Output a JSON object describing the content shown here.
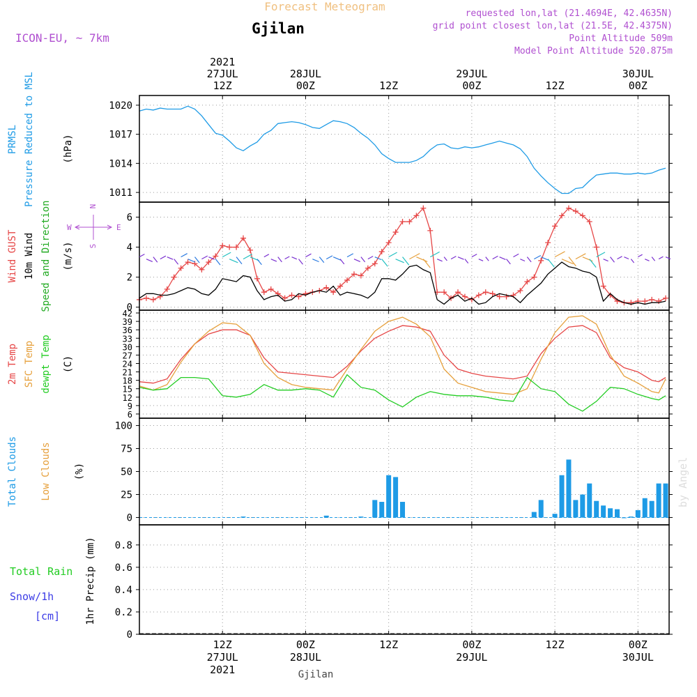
{
  "header": {
    "model": "ICON-EU, ~ 7km",
    "title": "Forecast Meteogram",
    "location": "Gjilan",
    "requested": "requested lon,lat (21.4694E, 42.4635N)",
    "grid": "grid point closest lon,lat (21.5E, 42.4375N)",
    "point_alt": "Point Altitude 509m",
    "model_alt": "Model Point Altitude 520.875m",
    "credit": "by Angel",
    "footer_location": "Gjilan"
  },
  "colors": {
    "pressure": "#1e9be6",
    "gust": "#e64646",
    "wind": "#000000",
    "wind_dir": "#22aa22",
    "t2m": "#e64646",
    "sfc": "#e6a03c",
    "dewpt": "#22cc22",
    "total_clouds": "#1e9be6",
    "low_clouds": "#e6a03c",
    "rain": "#22cc22",
    "snow": "#3c3ce6",
    "header_purple": "#b050d0",
    "title_orange": "#f0c080"
  },
  "time_axis": {
    "top": [
      {
        "t": 12,
        "lines": [
          "2021",
          "27JUL",
          "12Z"
        ]
      },
      {
        "t": 24,
        "lines": [
          "28JUL",
          "00Z"
        ]
      },
      {
        "t": 36,
        "lines": [
          "12Z"
        ]
      },
      {
        "t": 48,
        "lines": [
          "29JUL",
          "00Z"
        ]
      },
      {
        "t": 60,
        "lines": [
          "12Z"
        ]
      },
      {
        "t": 72,
        "lines": [
          "30JUL",
          "00Z"
        ]
      }
    ],
    "bottom": [
      {
        "t": 12,
        "lines": [
          "12Z",
          "27JUL",
          "2021"
        ]
      },
      {
        "t": 24,
        "lines": [
          "00Z",
          "28JUL"
        ]
      },
      {
        "t": 36,
        "lines": [
          "12Z"
        ]
      },
      {
        "t": 48,
        "lines": [
          "00Z",
          "29JUL"
        ]
      },
      {
        "t": 60,
        "lines": [
          "12Z"
        ]
      },
      {
        "t": 72,
        "lines": [
          "00Z",
          "30JUL"
        ]
      }
    ]
  },
  "chart_data": [
    {
      "type": "line",
      "panel": "pressure",
      "label_lines": [
        "PRMSL",
        "Pressure Reduced to MSL"
      ],
      "unit": "(hPa)",
      "yticks": [
        1011,
        1014,
        1017,
        1020
      ],
      "ylim": [
        1010,
        1021
      ],
      "series": [
        {
          "name": "PRMSL",
          "x": [
            0,
            1,
            2,
            3,
            4,
            5,
            6,
            7,
            8,
            9,
            10,
            11,
            12,
            13,
            14,
            15,
            16,
            17,
            18,
            19,
            20,
            21,
            22,
            23,
            24,
            25,
            26,
            27,
            28,
            29,
            30,
            31,
            32,
            33,
            34,
            35,
            36,
            37,
            38,
            39,
            40,
            41,
            42,
            43,
            44,
            45,
            46,
            47,
            48,
            49,
            50,
            51,
            52,
            53,
            54,
            55,
            56,
            57,
            58,
            59,
            60,
            61,
            62,
            63,
            64,
            65,
            66,
            67,
            68,
            69,
            70,
            71,
            72,
            73,
            74,
            75,
            76
          ],
          "values": [
            1019.4,
            1019.6,
            1019.5,
            1019.7,
            1019.6,
            1019.6,
            1019.6,
            1019.9,
            1019.6,
            1018.9,
            1018.0,
            1017.1,
            1016.9,
            1016.3,
            1015.6,
            1015.3,
            1015.8,
            1016.2,
            1017.0,
            1017.4,
            1018.1,
            1018.2,
            1018.3,
            1018.2,
            1018.0,
            1017.7,
            1017.6,
            1018.0,
            1018.4,
            1018.3,
            1018.1,
            1017.7,
            1017.1,
            1016.6,
            1015.9,
            1015.0,
            1014.5,
            1014.1,
            1014.1,
            1014.1,
            1014.3,
            1014.7,
            1015.4,
            1015.9,
            1016.0,
            1015.6,
            1015.5,
            1015.7,
            1015.6,
            1015.7,
            1015.9,
            1016.1,
            1016.3,
            1016.1,
            1015.9,
            1015.5,
            1014.7,
            1013.5,
            1012.7,
            1012.0,
            1011.4,
            1010.9,
            1010.9,
            1011.4,
            1011.5,
            1012.2,
            1012.8,
            1012.9,
            1013.0,
            1013.0,
            1012.9,
            1012.9,
            1013.0,
            1012.9,
            1013.0,
            1013.3,
            1013.5
          ]
        }
      ]
    },
    {
      "type": "line",
      "panel": "wind",
      "label_lines": [
        "Wind GUST",
        "10m Wind",
        "Speed and Direction"
      ],
      "unit": "(m/s)",
      "compass": {
        "n": "N",
        "w": "W",
        "e": "E",
        "s": "S"
      },
      "yticks": [
        0,
        2,
        4,
        6
      ],
      "ylim": [
        -0.2,
        7
      ],
      "series": [
        {
          "name": "Wind GUST",
          "marker": "+",
          "x": [
            0,
            1,
            2,
            3,
            4,
            5,
            6,
            7,
            8,
            9,
            10,
            11,
            12,
            13,
            14,
            15,
            16,
            17,
            18,
            19,
            20,
            21,
            22,
            23,
            24,
            25,
            26,
            27,
            28,
            29,
            30,
            31,
            32,
            33,
            34,
            35,
            36,
            37,
            38,
            39,
            40,
            41,
            42,
            43,
            44,
            45,
            46,
            47,
            48,
            49,
            50,
            51,
            52,
            53,
            54,
            55,
            56,
            57,
            58,
            59,
            60,
            61,
            62,
            63,
            64,
            65,
            66,
            67,
            68,
            69,
            70,
            71,
            72,
            73,
            74,
            75,
            76
          ],
          "values": [
            0.5,
            0.6,
            0.5,
            0.7,
            1.2,
            2.0,
            2.6,
            3.0,
            2.9,
            2.5,
            3.0,
            3.4,
            4.1,
            4.0,
            4.0,
            4.6,
            3.8,
            1.9,
            1.0,
            1.2,
            0.9,
            0.6,
            0.8,
            0.7,
            0.9,
            1.0,
            1.1,
            1.3,
            1.0,
            1.4,
            1.8,
            2.2,
            2.1,
            2.6,
            2.9,
            3.7,
            4.3,
            5.0,
            5.7,
            5.7,
            6.1,
            6.6,
            5.1,
            1.0,
            1.0,
            0.6,
            1.0,
            0.7,
            0.5,
            0.8,
            1.0,
            0.9,
            0.7,
            0.7,
            0.8,
            1.1,
            1.7,
            2.0,
            3.1,
            4.3,
            5.4,
            6.1,
            6.6,
            6.4,
            6.1,
            5.7,
            4.0,
            1.4,
            0.8,
            0.4,
            0.3,
            0.3,
            0.4,
            0.4,
            0.5,
            0.4,
            0.6
          ]
        },
        {
          "name": "10m Wind",
          "x": [
            0,
            1,
            2,
            3,
            4,
            5,
            6,
            7,
            8,
            9,
            10,
            11,
            12,
            13,
            14,
            15,
            16,
            17,
            18,
            19,
            20,
            21,
            22,
            23,
            24,
            25,
            26,
            27,
            28,
            29,
            30,
            31,
            32,
            33,
            34,
            35,
            36,
            37,
            38,
            39,
            40,
            41,
            42,
            43,
            44,
            45,
            46,
            47,
            48,
            49,
            50,
            51,
            52,
            53,
            54,
            55,
            56,
            57,
            58,
            59,
            60,
            61,
            62,
            63,
            64,
            65,
            66,
            67,
            68,
            69,
            70,
            71,
            72,
            73,
            74,
            75,
            76
          ],
          "values": [
            0.6,
            0.9,
            0.9,
            0.8,
            0.8,
            0.9,
            1.1,
            1.3,
            1.2,
            0.9,
            0.8,
            1.2,
            1.9,
            1.8,
            1.7,
            2.1,
            2.0,
            1.1,
            0.5,
            0.7,
            0.8,
            0.4,
            0.5,
            0.9,
            0.8,
            1.0,
            1.1,
            1.0,
            1.4,
            0.8,
            1.0,
            0.9,
            0.8,
            0.6,
            1.0,
            1.9,
            1.9,
            1.8,
            2.2,
            2.7,
            2.8,
            2.5,
            2.3,
            0.5,
            0.2,
            0.6,
            0.8,
            0.4,
            0.6,
            0.2,
            0.3,
            0.7,
            0.9,
            0.8,
            0.7,
            0.3,
            0.8,
            1.2,
            1.6,
            2.2,
            2.6,
            3.0,
            2.7,
            2.6,
            2.4,
            2.3,
            2.0,
            0.4,
            0.9,
            0.5,
            0.3,
            0.2,
            0.3,
            0.2,
            0.3,
            0.3,
            0.4
          ]
        }
      ]
    },
    {
      "type": "line",
      "panel": "temperature",
      "label_lines": [
        "2m Temp",
        "SFC Temp",
        "dewpt Temp"
      ],
      "unit": "(C)",
      "yticks": [
        6,
        9,
        12,
        15,
        18,
        21,
        24,
        27,
        30,
        33,
        36,
        39,
        42
      ],
      "ylim": [
        4.5,
        43
      ],
      "series": [
        {
          "name": "2m Temp",
          "x": [
            0,
            2,
            4,
            6,
            8,
            10,
            12,
            14,
            16,
            18,
            20,
            22,
            24,
            26,
            28,
            30,
            32,
            34,
            36,
            38,
            40,
            42,
            44,
            46,
            48,
            50,
            52,
            54,
            56,
            58,
            60,
            62,
            64,
            66,
            68,
            70,
            72,
            74,
            75,
            76
          ],
          "values": [
            17.5,
            17.0,
            18.5,
            25.5,
            31.0,
            34.5,
            36.0,
            36.0,
            34.0,
            26.0,
            21.0,
            20.5,
            20.0,
            19.5,
            19.0,
            23.0,
            28.5,
            33.0,
            35.5,
            37.5,
            37.0,
            35.5,
            27.0,
            22.0,
            20.5,
            19.5,
            19.0,
            18.5,
            19.5,
            27.5,
            33.0,
            37.0,
            37.5,
            35.0,
            26.0,
            22.5,
            21.0,
            18.0,
            17.5,
            19.0
          ]
        },
        {
          "name": "SFC Temp",
          "x": [
            0,
            2,
            4,
            6,
            8,
            10,
            12,
            14,
            16,
            18,
            20,
            22,
            24,
            26,
            28,
            30,
            32,
            34,
            36,
            38,
            40,
            42,
            44,
            46,
            48,
            50,
            52,
            54,
            56,
            58,
            60,
            62,
            64,
            66,
            68,
            70,
            72,
            74,
            75,
            76
          ],
          "values": [
            16.0,
            14.5,
            16.5,
            24.5,
            31.0,
            35.5,
            38.5,
            38.0,
            34.0,
            24.0,
            19.0,
            16.5,
            15.5,
            15.0,
            14.5,
            22.0,
            29.0,
            35.5,
            39.0,
            40.5,
            38.0,
            33.5,
            22.0,
            17.0,
            15.5,
            14.0,
            13.5,
            13.0,
            15.0,
            25.5,
            35.0,
            40.5,
            41.0,
            38.0,
            27.0,
            19.5,
            17.0,
            14.0,
            13.5,
            18.5
          ]
        },
        {
          "name": "dewpt Temp",
          "x": [
            0,
            2,
            4,
            6,
            8,
            10,
            12,
            14,
            16,
            18,
            20,
            22,
            24,
            26,
            28,
            30,
            32,
            34,
            36,
            38,
            40,
            42,
            44,
            46,
            48,
            50,
            52,
            54,
            56,
            58,
            60,
            62,
            64,
            66,
            68,
            70,
            72,
            74,
            75,
            76
          ],
          "values": [
            15.5,
            14.5,
            15.0,
            19.0,
            19.0,
            18.5,
            12.5,
            12.0,
            13.0,
            16.5,
            14.5,
            14.5,
            15.0,
            14.5,
            12.0,
            20.0,
            15.5,
            14.5,
            11.0,
            8.5,
            12.0,
            14.0,
            13.0,
            12.5,
            12.5,
            12.0,
            11.0,
            10.5,
            19.0,
            15.0,
            14.0,
            9.5,
            7.0,
            10.5,
            15.5,
            15.0,
            13.0,
            11.5,
            11.0,
            12.5
          ]
        }
      ]
    },
    {
      "type": "bar",
      "panel": "clouds",
      "label_lines": [
        "Total Clouds",
        "Low Clouds"
      ],
      "unit": "(%)",
      "yticks": [
        0,
        25,
        50,
        75,
        100
      ],
      "ylim": [
        -8,
        108
      ],
      "series": [
        {
          "name": "Total Clouds",
          "x": [
            15,
            27,
            32,
            34,
            35,
            36,
            37,
            38,
            57,
            58,
            60,
            61,
            62,
            63,
            64,
            65,
            66,
            67,
            68,
            69,
            70,
            71,
            72,
            73,
            74,
            75,
            76
          ],
          "values": [
            1,
            2,
            1,
            19,
            17,
            46,
            44,
            17,
            6,
            19,
            4,
            46,
            63,
            19,
            25,
            37,
            18,
            13,
            10,
            9,
            0,
            1,
            8,
            21,
            18,
            37,
            37
          ]
        },
        {
          "name": "Low Clouds",
          "x": [],
          "values": []
        }
      ]
    },
    {
      "type": "line",
      "panel": "precip",
      "label_lines": [
        "Total  Rain",
        "Snow/1h",
        "[cm]"
      ],
      "unit": "1hr Precip (mm)",
      "yticks": [
        0,
        0.2,
        0.4,
        0.6,
        0.8
      ],
      "ylim": [
        0,
        0.98
      ],
      "series": [
        {
          "name": "Total Rain",
          "x": [
            0,
            76
          ],
          "values": [
            0,
            0
          ]
        }
      ]
    }
  ]
}
